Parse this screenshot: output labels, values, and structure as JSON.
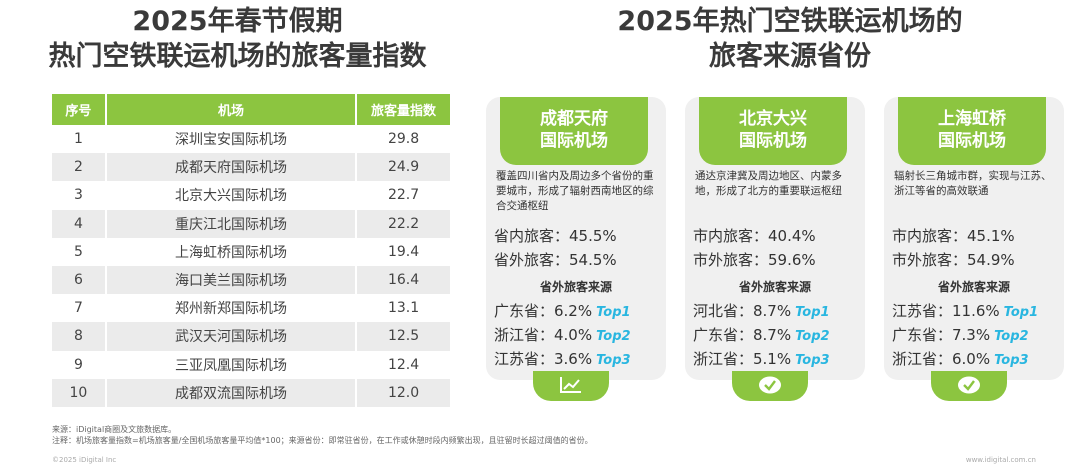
{
  "left": {
    "title_line1": "2025年春节假期",
    "title_line2": "热门空铁联运机场的旅客量指数",
    "table": {
      "headers": [
        "序号",
        "机场",
        "旅客量指数"
      ],
      "rows": [
        [
          "1",
          "深圳宝安国际机场",
          "29.8"
        ],
        [
          "2",
          "成都天府国际机场",
          "24.9"
        ],
        [
          "3",
          "北京大兴国际机场",
          "22.7"
        ],
        [
          "4",
          "重庆江北国际机场",
          "22.2"
        ],
        [
          "5",
          "上海虹桥国际机场",
          "19.4"
        ],
        [
          "6",
          "海口美兰国际机场",
          "16.4"
        ],
        [
          "7",
          "郑州新郑国际机场",
          "13.1"
        ],
        [
          "8",
          "武汉天河国际机场",
          "12.5"
        ],
        [
          "9",
          "三亚凤凰国际机场",
          "12.4"
        ],
        [
          "10",
          "成都双流国际机场",
          "12.0"
        ]
      ]
    }
  },
  "right": {
    "title_line1": "2025年热门空铁联运机场的",
    "title_line2": "旅客来源省份",
    "source_title": "省外旅客来源",
    "cards": [
      {
        "name_line1": "成都天府",
        "name_line2": "国际机场",
        "desc": "覆盖四川省内及周边多个省份的重要城市，形成了辐射西南地区的综合交通枢纽",
        "stat1": "省内旅客：45.5%",
        "stat2": "省外旅客：54.5%",
        "provinces": [
          {
            "text": "广东省：6.2%",
            "rank": "Top1"
          },
          {
            "text": "浙江省：4.0%",
            "rank": "Top2"
          },
          {
            "text": "江苏省：3.6%",
            "rank": "Top3"
          }
        ],
        "icon": "chart-line-icon"
      },
      {
        "name_line1": "北京大兴",
        "name_line2": "国际机场",
        "desc": "通达京津冀及周边地区、内蒙多地，形成了北方的重要联运枢纽",
        "stat1": "市内旅客：40.4%",
        "stat2": "市外旅客：59.6%",
        "provinces": [
          {
            "text": "河北省：8.7%",
            "rank": "Top1"
          },
          {
            "text": "广东省：8.7%",
            "rank": "Top2"
          },
          {
            "text": "浙江省：5.1%",
            "rank": "Top3"
          }
        ],
        "icon": "check-badge-icon"
      },
      {
        "name_line1": "上海虹桥",
        "name_line2": "国际机场",
        "desc": "辐射长三角城市群，实现与江苏、浙江等省的高效联通",
        "stat1": "市内旅客：45.1%",
        "stat2": "市外旅客：54.9%",
        "provinces": [
          {
            "text": "江苏省：11.6%",
            "rank": "Top1"
          },
          {
            "text": "广东省：7.3%",
            "rank": "Top2"
          },
          {
            "text": "浙江省：6.0%",
            "rank": "Top3"
          }
        ],
        "icon": "check-badge-icon"
      }
    ]
  },
  "notes": {
    "line1": "来源：iDigital商圈及文旅数据库。",
    "line2": "注释：机场旅客量指数=机场旅客量/全国机场旅客量平均值*100；来源省份：即常驻省份，在工作或休憩时段内频繁出现，且驻留时长超过阈值的省份。"
  },
  "footer": {
    "copyright": "©2025 iDigital Inc",
    "website": "www.idigital.com.cn"
  },
  "colors": {
    "accent_green": "#8cc540",
    "top_label_blue": "#29b6e0",
    "card_bg": "#f0f0f0",
    "row_alt_bg": "#ebebeb"
  }
}
